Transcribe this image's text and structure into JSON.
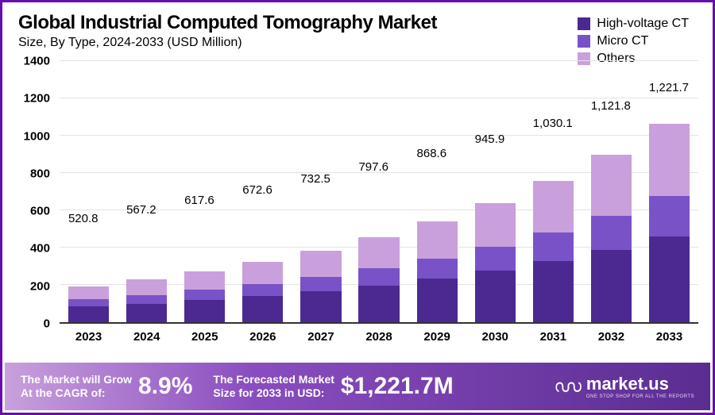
{
  "title": "Global Industrial Computed Tomography Market",
  "subtitle": "Size, By Type, 2024-2033 (USD Million)",
  "colors": {
    "title": "#111111",
    "subtitle": "#333333",
    "border": "#6a0dad",
    "grid": "#e3e3e3",
    "axis_text": "#111111",
    "footer_text": "#ffffff"
  },
  "chart": {
    "type": "stacked-bar",
    "ylim": [
      0,
      1400
    ],
    "ytick_step": 200,
    "yticks": [
      "0",
      "200",
      "400",
      "600",
      "800",
      "1000",
      "1200",
      "1400"
    ],
    "bar_width_pct": 70,
    "series": [
      {
        "name": "High-voltage CT",
        "color": "#4b2991"
      },
      {
        "name": "Micro CT",
        "color": "#7a52c7"
      },
      {
        "name": "Others",
        "color": "#c9a0dc"
      }
    ],
    "categories": [
      "2023",
      "2024",
      "2025",
      "2026",
      "2027",
      "2028",
      "2029",
      "2030",
      "2031",
      "2032",
      "2033"
    ],
    "totals": [
      "520.8",
      "567.2",
      "617.6",
      "672.6",
      "732.5",
      "797.6",
      "868.6",
      "945.9",
      "1,030.1",
      "1,121.8",
      "1,221.7"
    ],
    "stacks": [
      [
        224,
        106,
        190.8
      ],
      [
        244,
        116,
        207.2
      ],
      [
        266,
        126,
        225.6
      ],
      [
        290,
        138,
        244.6
      ],
      [
        316,
        150,
        266.5
      ],
      [
        344,
        162,
        291.6
      ],
      [
        374,
        178,
        316.6
      ],
      [
        408,
        192,
        345.9
      ],
      [
        444,
        210,
        376.1
      ],
      [
        484,
        228,
        409.8
      ],
      [
        526,
        248,
        447.7
      ]
    ]
  },
  "footer": {
    "cagr_label": "The Market will Grow\nAt the CAGR of:",
    "cagr_value": "8.9%",
    "forecast_label": "The Forecasted Market\nSize for 2033 in USD:",
    "forecast_value": "$1,221.7M",
    "brand_icon": "וּה",
    "brand_name": "market.us",
    "brand_tag": "ONE STOP SHOP FOR ALL THE REPORTS"
  }
}
